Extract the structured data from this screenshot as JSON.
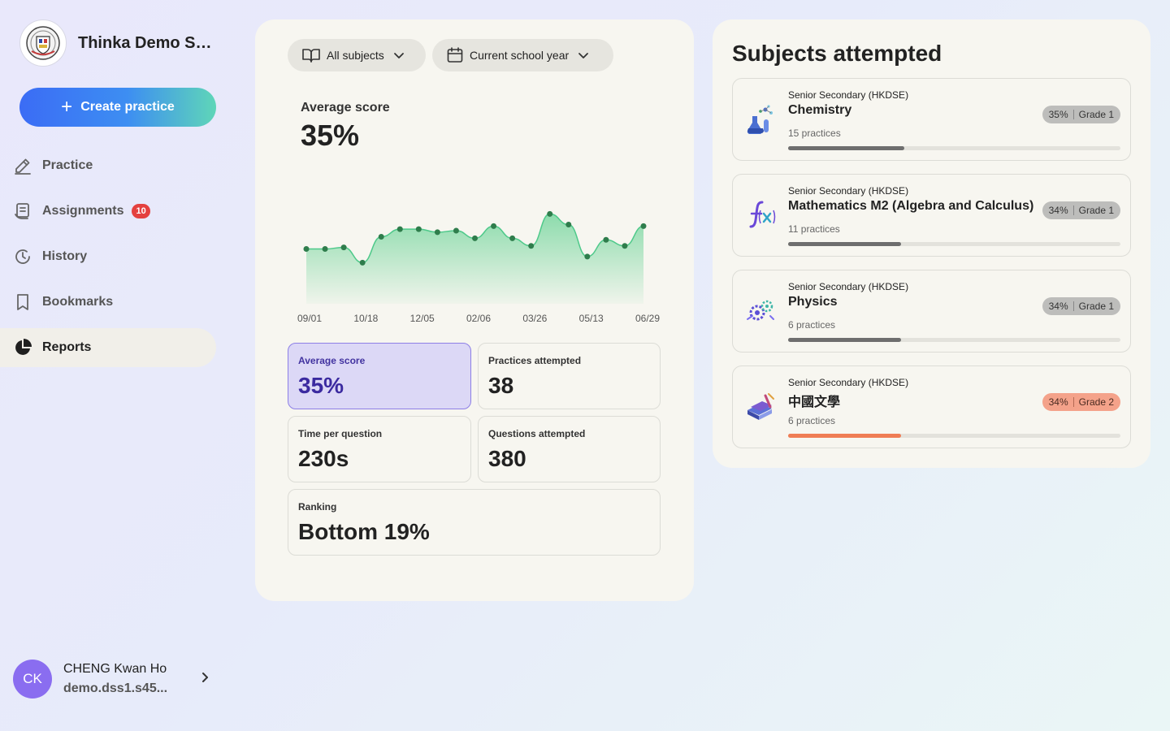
{
  "school": {
    "name": "Thinka Demo Secondary School"
  },
  "sidebar": {
    "create_label": "Create practice",
    "items": [
      {
        "label": "Practice",
        "icon": "pencil-icon"
      },
      {
        "label": "Assignments",
        "icon": "assignment-icon",
        "badge": "10"
      },
      {
        "label": "History",
        "icon": "history-icon"
      },
      {
        "label": "Bookmarks",
        "icon": "bookmark-icon"
      },
      {
        "label": "Reports",
        "icon": "pie-chart-icon",
        "active": true
      }
    ]
  },
  "user": {
    "initials": "CK",
    "name": "CHENG Kwan Ho",
    "email": "demo.dss1.s45..."
  },
  "filters": {
    "subject": "All subjects",
    "period": "Current school year"
  },
  "summary": {
    "avg_label": "Average score",
    "avg_value": "35%"
  },
  "chart_data": {
    "type": "area",
    "x_ticks": [
      "09/01",
      "10/18",
      "12/05",
      "02/06",
      "03/26",
      "05/13",
      "06/29"
    ],
    "values": [
      36,
      36,
      37,
      27,
      44,
      49,
      49,
      47,
      48,
      43,
      51,
      43,
      38,
      59,
      52,
      31,
      42,
      38,
      51
    ],
    "ylim": [
      0,
      80
    ],
    "color": "#4ec98a",
    "point_color": "#2f7d4c"
  },
  "stats": [
    {
      "label": "Average score",
      "value": "35%",
      "highlight": true
    },
    {
      "label": "Practices attempted",
      "value": "38"
    },
    {
      "label": "Time per question",
      "value": "230s"
    },
    {
      "label": "Questions attempted",
      "value": "380"
    },
    {
      "label": "Ranking",
      "value": "Bottom 19%"
    }
  ],
  "subjects_panel": {
    "title": "Subjects attempted",
    "items": [
      {
        "level": "Senior Secondary (HKDSE)",
        "name": "Chemistry",
        "practices": "15 practices",
        "score": "35%",
        "grade": "Grade 1",
        "progress": 0.35,
        "icon": "chemistry-flask-icon",
        "tone": "neutral"
      },
      {
        "level": "Senior Secondary (HKDSE)",
        "name": "Mathematics M2 (Algebra and Calculus)",
        "practices": "11 practices",
        "score": "34%",
        "grade": "Grade 1",
        "progress": 0.34,
        "icon": "math-function-icon",
        "tone": "neutral"
      },
      {
        "level": "Senior Secondary (HKDSE)",
        "name": "Physics",
        "practices": "6 practices",
        "score": "34%",
        "grade": "Grade 1",
        "progress": 0.34,
        "icon": "physics-gears-icon",
        "tone": "neutral"
      },
      {
        "level": "Senior Secondary (HKDSE)",
        "name": "中國文學",
        "practices": "6 practices",
        "score": "34%",
        "grade": "Grade 2",
        "progress": 0.34,
        "icon": "books-icon",
        "tone": "warm"
      }
    ]
  }
}
